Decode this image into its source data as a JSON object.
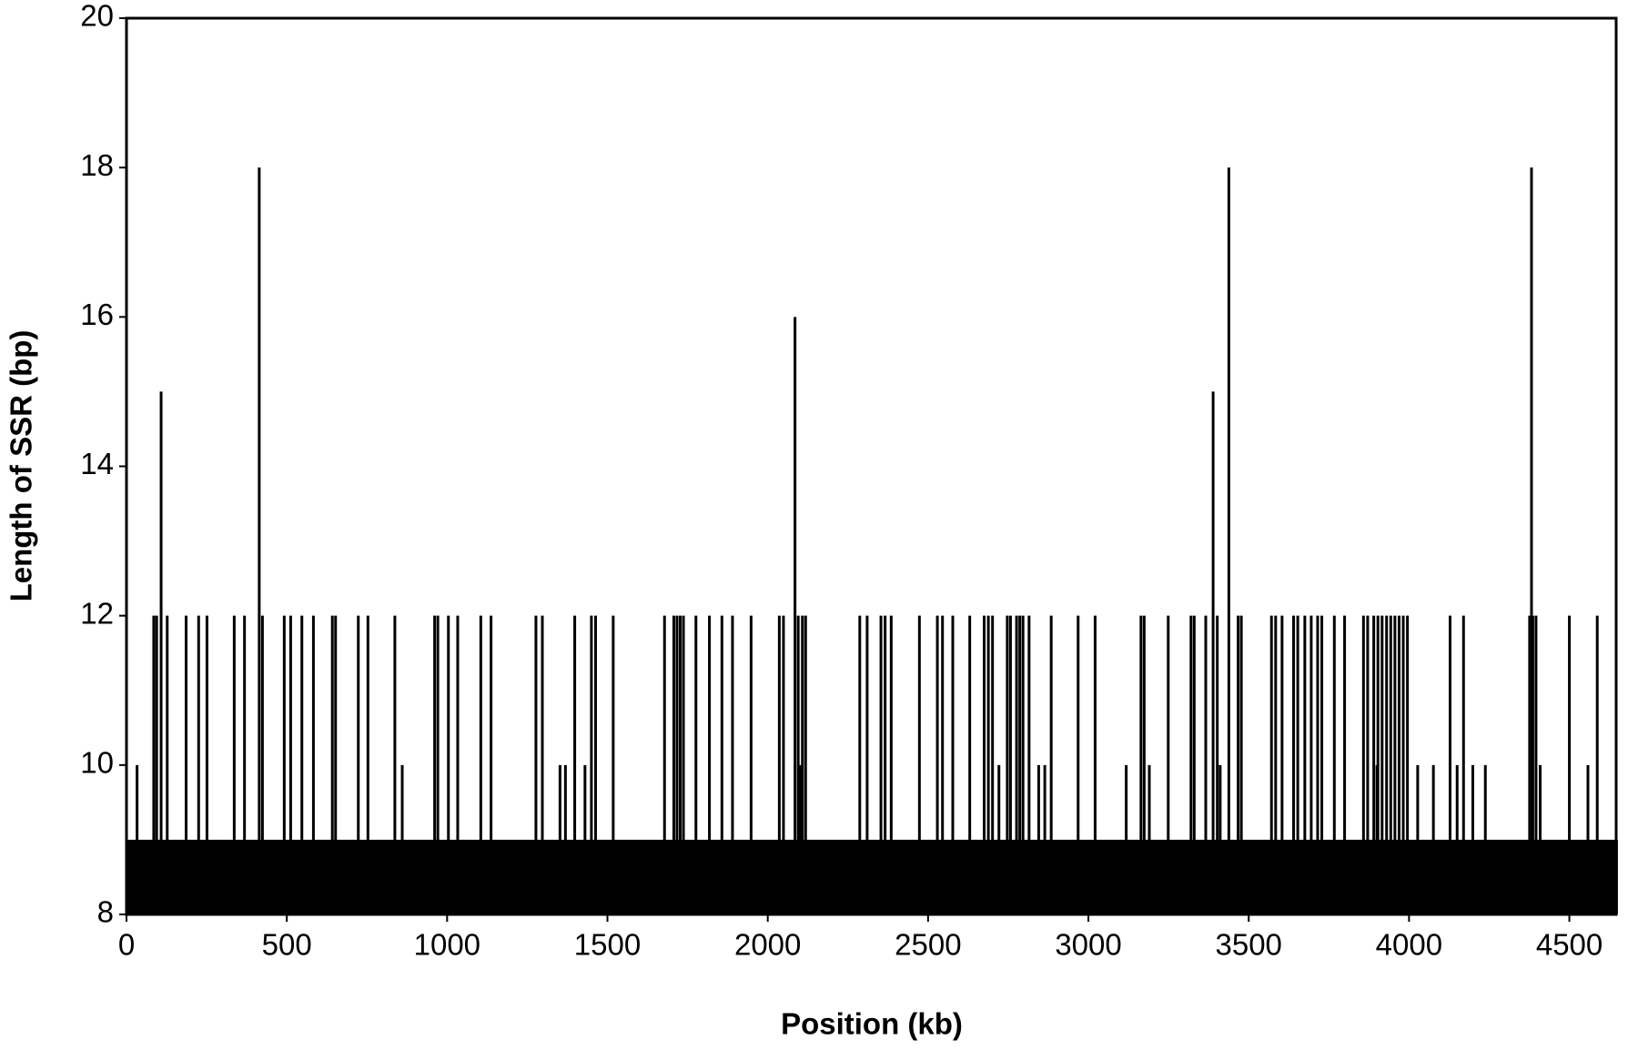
{
  "chart_data": {
    "type": "spike",
    "xlabel": "Position (kb)",
    "ylabel": "Length of SSR (bp)",
    "xlim": [
      0,
      4646
    ],
    "xticks": [
      0,
      500,
      1000,
      1500,
      2000,
      2500,
      3000,
      3500,
      4000,
      4500
    ],
    "ylim": [
      8,
      20
    ],
    "yticks": [
      8,
      10,
      12,
      14,
      16,
      18,
      20
    ],
    "series": [
      {
        "color": "#000000",
        "width": 50,
        "x": [
          0,
          50,
          100,
          150,
          200,
          250,
          300,
          350,
          400,
          450,
          500,
          550,
          600,
          650,
          700,
          750,
          800,
          850,
          900,
          950,
          1000,
          1050,
          1100,
          1150,
          1200,
          1250,
          1300,
          1350,
          1400,
          1450,
          1500,
          1550,
          1600,
          1650,
          1700,
          1750,
          1800,
          1850,
          1900,
          1950,
          2000,
          2050,
          2100,
          2150,
          2200,
          2250,
          2300,
          2350,
          2400,
          2450,
          2500,
          2550,
          2600,
          2650,
          2700,
          2750,
          2800,
          2850,
          2900,
          2950,
          3000,
          3050,
          3100,
          3150,
          3200,
          3250,
          3300,
          3350,
          3400,
          3450,
          3500,
          3550,
          3600,
          3650,
          3700,
          3750,
          3800,
          3850,
          3900,
          3950,
          4000,
          4050,
          4100,
          4150,
          4200,
          4250,
          4300,
          4350,
          4400,
          4450,
          4500,
          4550,
          4600
        ],
        "values": [
          9,
          9,
          9,
          9,
          9,
          9,
          9,
          9,
          9,
          9,
          9,
          9,
          9,
          9,
          9,
          9,
          9,
          9,
          9,
          9,
          9,
          9,
          9,
          9,
          9,
          9,
          9,
          9,
          9,
          9,
          9,
          9,
          9,
          9,
          9,
          9,
          9,
          9,
          9,
          9,
          9,
          9,
          9,
          9,
          9,
          9,
          9,
          9,
          9,
          9,
          9,
          9,
          9,
          9,
          9,
          9,
          9,
          9,
          9,
          9,
          9,
          9,
          9,
          9,
          9,
          9,
          9,
          9,
          9,
          9,
          9,
          9,
          9,
          9,
          9,
          9,
          9,
          9,
          9,
          9,
          9,
          9,
          9,
          9,
          9,
          9,
          9,
          9,
          9,
          9,
          9,
          9,
          9
        ]
      },
      {
        "color": "#000000",
        "x": [
          33,
          85,
          94,
          108,
          127,
          186,
          225,
          251,
          336,
          368,
          414,
          424,
          492,
          512,
          547,
          583,
          642,
          652,
          723,
          753,
          837,
          860,
          961,
          971,
          1004,
          1033,
          1105,
          1137,
          1277,
          1297,
          1352,
          1369,
          1398,
          1430,
          1450,
          1463,
          1518,
          1678,
          1707,
          1717,
          1727,
          1737,
          1776,
          1818,
          1857,
          1890,
          1948,
          2036,
          2049,
          2085,
          2095,
          2102,
          2108,
          2118,
          2287,
          2310,
          2353,
          2366,
          2385,
          2473,
          2529,
          2545,
          2577,
          2630,
          2675,
          2688,
          2701,
          2721,
          2747,
          2757,
          2776,
          2786,
          2796,
          2815,
          2845,
          2864,
          2884,
          2968,
          3021,
          3118,
          3164,
          3174,
          3190,
          3249,
          3320,
          3330,
          3366,
          3389,
          3402,
          3411,
          3438,
          3467,
          3477,
          3571,
          3584,
          3604,
          3640,
          3653,
          3675,
          3695,
          3715,
          3728,
          3767,
          3799,
          3858,
          3871,
          3890,
          3900,
          3903,
          3916,
          3930,
          3943,
          3956,
          3969,
          3982,
          3995,
          4027,
          4076,
          4128,
          4150,
          4170,
          4199,
          4238,
          4376,
          4382,
          4386,
          4396,
          4409,
          4500,
          4558,
          4587
        ],
        "values": [
          10,
          12,
          12,
          15,
          12,
          12,
          12,
          12,
          12,
          12,
          18,
          12,
          12,
          12,
          12,
          12,
          12,
          12,
          12,
          12,
          12,
          10,
          12,
          12,
          12,
          12,
          12,
          12,
          12,
          12,
          10,
          10,
          12,
          10,
          12,
          12,
          12,
          12,
          12,
          12,
          12,
          12,
          12,
          12,
          12,
          12,
          12,
          12,
          12,
          16,
          12,
          10,
          12,
          12,
          12,
          12,
          12,
          12,
          12,
          12,
          12,
          12,
          12,
          12,
          12,
          12,
          12,
          10,
          12,
          12,
          12,
          12,
          12,
          12,
          10,
          10,
          12,
          12,
          12,
          10,
          12,
          12,
          10,
          12,
          12,
          12,
          12,
          15,
          12,
          10,
          18,
          12,
          12,
          12,
          12,
          12,
          12,
          12,
          12,
          12,
          12,
          12,
          12,
          12,
          12,
          12,
          12,
          10,
          12,
          12,
          12,
          12,
          12,
          12,
          12,
          12,
          10,
          10,
          12,
          10,
          12,
          10,
          10,
          12,
          18,
          12,
          12,
          10,
          12,
          10,
          12
        ]
      }
    ]
  }
}
